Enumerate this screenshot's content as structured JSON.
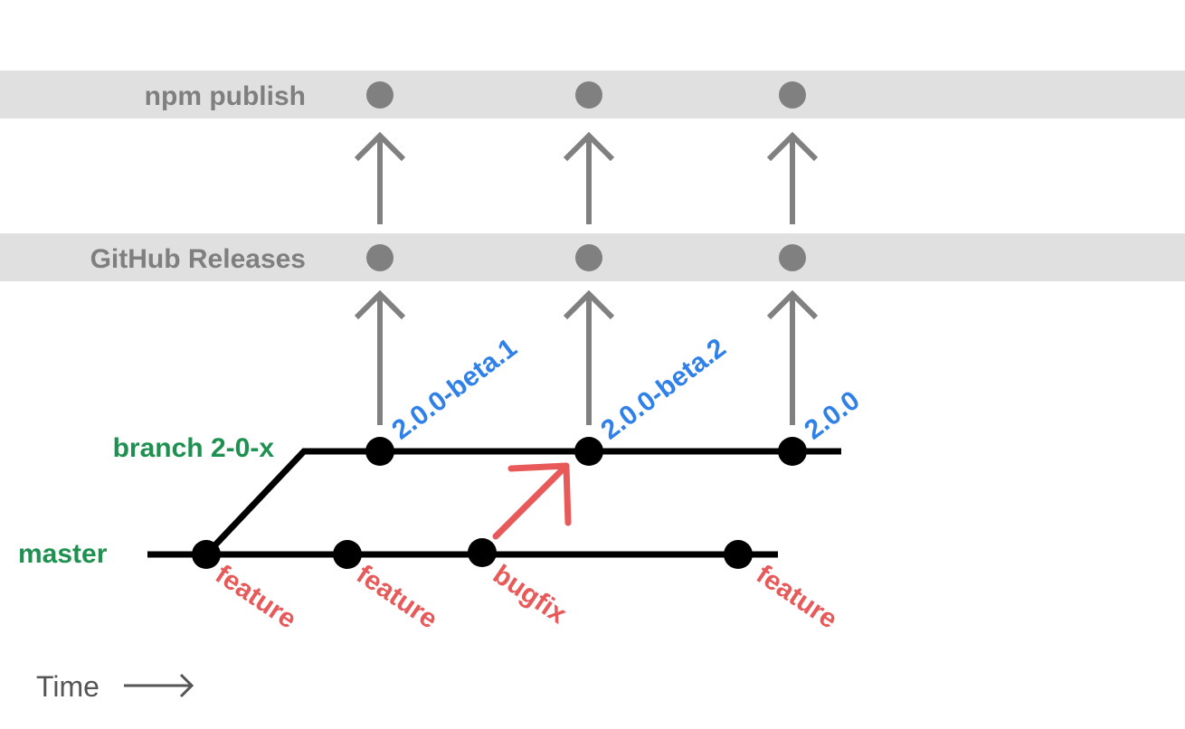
{
  "colors": {
    "band": "#e0e0e0",
    "gray": "#808080",
    "branch_label": "#1e9150",
    "tag": "#2f80e8",
    "commit": "#e85a5a",
    "line": "#000000"
  },
  "rows": {
    "npm": "npm publish",
    "github": "GitHub Releases"
  },
  "branches": {
    "release": "branch 2-0-x",
    "master": "master"
  },
  "tags": [
    "2.0.0-beta.1",
    "2.0.0-beta.2",
    "2.0.0"
  ],
  "commits": [
    "feature",
    "feature",
    "bugfix",
    "feature"
  ],
  "time": {
    "label": "Time",
    "icon": "arrow-right-icon"
  }
}
